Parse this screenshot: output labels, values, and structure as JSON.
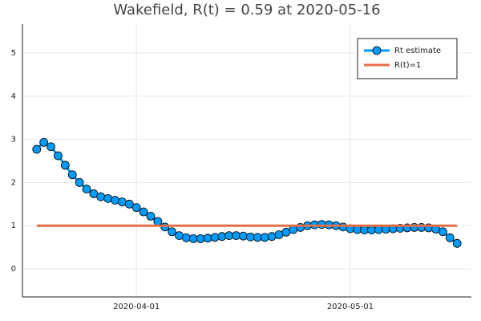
{
  "chart_data": {
    "type": "line",
    "title": "Wakefield, R(t) = 0.59 at 2020-05-16",
    "x": [
      "2020-03-18",
      "2020-03-19",
      "2020-03-20",
      "2020-03-21",
      "2020-03-22",
      "2020-03-23",
      "2020-03-24",
      "2020-03-25",
      "2020-03-26",
      "2020-03-27",
      "2020-03-28",
      "2020-03-29",
      "2020-03-30",
      "2020-03-31",
      "2020-04-01",
      "2020-04-02",
      "2020-04-03",
      "2020-04-04",
      "2020-04-05",
      "2020-04-06",
      "2020-04-07",
      "2020-04-08",
      "2020-04-09",
      "2020-04-10",
      "2020-04-11",
      "2020-04-12",
      "2020-04-13",
      "2020-04-14",
      "2020-04-15",
      "2020-04-16",
      "2020-04-17",
      "2020-04-18",
      "2020-04-19",
      "2020-04-20",
      "2020-04-21",
      "2020-04-22",
      "2020-04-23",
      "2020-04-24",
      "2020-04-25",
      "2020-04-26",
      "2020-04-27",
      "2020-04-28",
      "2020-04-29",
      "2020-04-30",
      "2020-05-01",
      "2020-05-02",
      "2020-05-03",
      "2020-05-04",
      "2020-05-05",
      "2020-05-06",
      "2020-05-07",
      "2020-05-08",
      "2020-05-09",
      "2020-05-10",
      "2020-05-11",
      "2020-05-12",
      "2020-05-13",
      "2020-05-14",
      "2020-05-15",
      "2020-05-16"
    ],
    "series": [
      {
        "name": "Rt estimate",
        "color": "#009af9",
        "markers": true,
        "values": [
          2.77,
          2.93,
          2.83,
          2.62,
          2.4,
          2.18,
          2.0,
          1.85,
          1.74,
          1.67,
          1.63,
          1.59,
          1.55,
          1.5,
          1.42,
          1.32,
          1.22,
          1.1,
          0.97,
          0.86,
          0.77,
          0.72,
          0.7,
          0.7,
          0.71,
          0.73,
          0.75,
          0.77,
          0.77,
          0.76,
          0.74,
          0.73,
          0.73,
          0.75,
          0.79,
          0.85,
          0.91,
          0.96,
          1.0,
          1.02,
          1.03,
          1.02,
          1.0,
          0.97,
          0.93,
          0.91,
          0.9,
          0.9,
          0.91,
          0.92,
          0.93,
          0.94,
          0.95,
          0.96,
          0.96,
          0.95,
          0.92,
          0.86,
          0.72,
          0.59
        ]
      },
      {
        "name": "R(t)=1",
        "color": "#e26f46",
        "markers": false,
        "values": [
          1,
          1,
          1,
          1,
          1,
          1,
          1,
          1,
          1,
          1,
          1,
          1,
          1,
          1,
          1,
          1,
          1,
          1,
          1,
          1,
          1,
          1,
          1,
          1,
          1,
          1,
          1,
          1,
          1,
          1,
          1,
          1,
          1,
          1,
          1,
          1,
          1,
          1,
          1,
          1,
          1,
          1,
          1,
          1,
          1,
          1,
          1,
          1,
          1,
          1,
          1,
          1,
          1,
          1,
          1,
          1,
          1,
          1,
          1,
          1
        ]
      }
    ],
    "xlim": [
      "2020-03-16",
      "2020-05-18"
    ],
    "xticks": [
      "2020-04-01",
      "2020-05-01"
    ],
    "ylim": [
      -0.65,
      5.67
    ],
    "yticks": [
      0,
      1,
      2,
      3,
      4,
      5
    ],
    "grid": true,
    "legend": "top-right"
  }
}
